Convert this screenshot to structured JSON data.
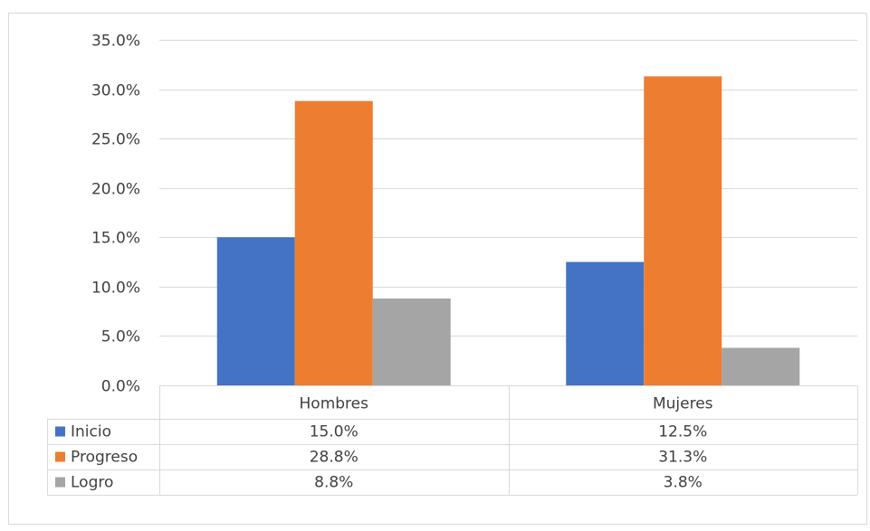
{
  "chart_data": {
    "type": "bar",
    "categories": [
      "Hombres",
      "Mujeres"
    ],
    "series": [
      {
        "name": "Inicio",
        "values": [
          15.0,
          12.5
        ],
        "labels": [
          "15.0%",
          "12.5%"
        ],
        "color": "#4472C4"
      },
      {
        "name": "Progreso",
        "values": [
          28.8,
          31.3
        ],
        "labels": [
          "28.8%",
          "31.3%"
        ],
        "color": "#ED7D31"
      },
      {
        "name": "Logro",
        "values": [
          8.8,
          3.8
        ],
        "labels": [
          "8.8%",
          "3.8%"
        ],
        "color": "#A5A5A5"
      }
    ],
    "ylim": [
      0,
      35
    ],
    "yticks": [
      0,
      5,
      10,
      15,
      20,
      25,
      30,
      35
    ],
    "ytick_labels": [
      "0.0%",
      "5.0%",
      "10.0%",
      "15.0%",
      "20.0%",
      "25.0%",
      "30.0%",
      "35.0%"
    ],
    "grid": true,
    "legend": "data-table"
  }
}
